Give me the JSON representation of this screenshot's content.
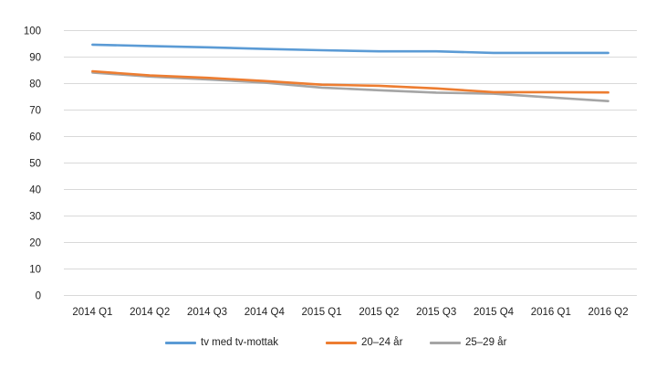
{
  "chart_data": {
    "type": "line",
    "title": "",
    "xlabel": "",
    "ylabel": "",
    "ylim": [
      0,
      100
    ],
    "yticks": [
      0,
      10,
      20,
      30,
      40,
      50,
      60,
      70,
      80,
      90,
      100
    ],
    "grid": true,
    "legend_position": "bottom",
    "categories": [
      "2014 Q1",
      "2014 Q2",
      "2014 Q3",
      "2014 Q4",
      "2015 Q1",
      "2015 Q2",
      "2015 Q3",
      "2015 Q4",
      "2016 Q1",
      "2016 Q2"
    ],
    "series": [
      {
        "name": "tv med tv-mottak",
        "color": "#5B9BD5",
        "values": [
          94.5,
          94.0,
          93.5,
          92.9,
          92.4,
          92.0,
          92.0,
          91.4,
          91.4,
          91.4
        ]
      },
      {
        "name": "20–24 år",
        "color": "#ED7D31",
        "values": [
          84.5,
          82.9,
          82.0,
          80.8,
          79.4,
          79.0,
          78.0,
          76.6,
          76.6,
          76.5
        ]
      },
      {
        "name": "25–29 år",
        "color": "#A5A5A5",
        "values": [
          84.0,
          82.5,
          81.4,
          80.2,
          78.3,
          77.3,
          76.4,
          76.0,
          74.6,
          73.2
        ]
      }
    ]
  },
  "legend": {
    "items": [
      {
        "label": "tv med tv-mottak",
        "color": "#5B9BD5"
      },
      {
        "label": "20–24 år",
        "color": "#ED7D31"
      },
      {
        "label": "25–29 år",
        "color": "#A5A5A5"
      }
    ]
  },
  "colors": {
    "gridline": "#D9D9D9",
    "text": "#222222",
    "background": "#FFFFFF"
  }
}
